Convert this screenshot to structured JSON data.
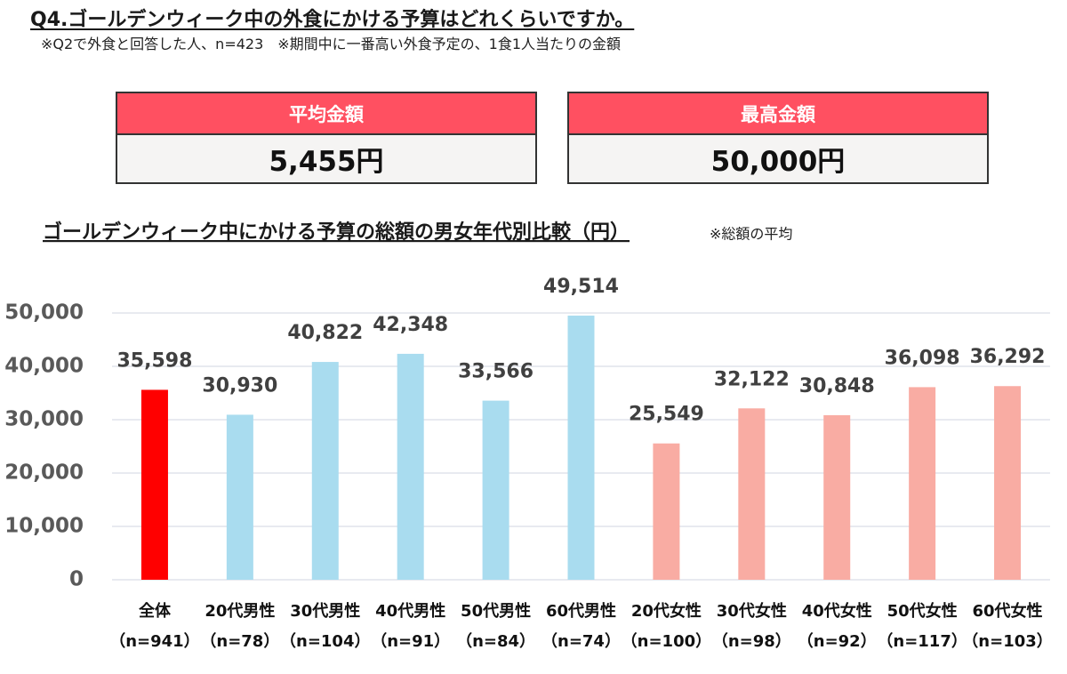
{
  "header": {
    "title": "Q4.ゴールデンウィーク中の外食にかける予算はどれくらいですか。",
    "note": "※Q2で外食と回答した人、n=423　※期間中に一番高い外食予定の、1食1人当たりの金額"
  },
  "summary": [
    {
      "label": "平均金額",
      "value": "5,455円"
    },
    {
      "label": "最高金額",
      "value": "50,000円"
    }
  ],
  "chart_data": {
    "type": "bar",
    "title": "ゴールデンウィーク中にかける予算の総額の男女年代別比較（円）",
    "subtitle": "※総額の平均",
    "categories": [
      "全体",
      "20代男性",
      "30代男性",
      "40代男性",
      "50代男性",
      "60代男性",
      "20代女性",
      "30代女性",
      "40代女性",
      "50代女性",
      "60代女性"
    ],
    "category_notes": [
      "（n=941）",
      "（n=78）",
      "（n=104）",
      "（n=91）",
      "（n=84）",
      "（n=74）",
      "（n=100）",
      "（n=98）",
      "（n=92）",
      "（n=117）",
      "（n=103）"
    ],
    "values": [
      35598,
      30930,
      40822,
      42348,
      33566,
      49514,
      25549,
      32122,
      30848,
      36098,
      36292
    ],
    "value_labels": [
      "35,598",
      "30,930",
      "40,822",
      "42,348",
      "33,566",
      "49,514",
      "25,549",
      "32,122",
      "30,848",
      "36,098",
      "36,292"
    ],
    "colors": [
      "#ff0000",
      "#a9dcef",
      "#a9dcef",
      "#a9dcef",
      "#a9dcef",
      "#a9dcef",
      "#f9aca3",
      "#f9aca3",
      "#f9aca3",
      "#f9aca3",
      "#f9aca3"
    ],
    "ylim": [
      0,
      50000
    ],
    "yticks": [
      0,
      {
        "value": 10000,
        "label": "10,000"
      },
      {
        "value": 20000,
        "label": "20,000"
      },
      {
        "value": 30000,
        "label": "30,000"
      },
      {
        "value": 40000,
        "label": "40,000"
      },
      {
        "value": 50000,
        "label": "50,000"
      }
    ],
    "grid": true
  }
}
